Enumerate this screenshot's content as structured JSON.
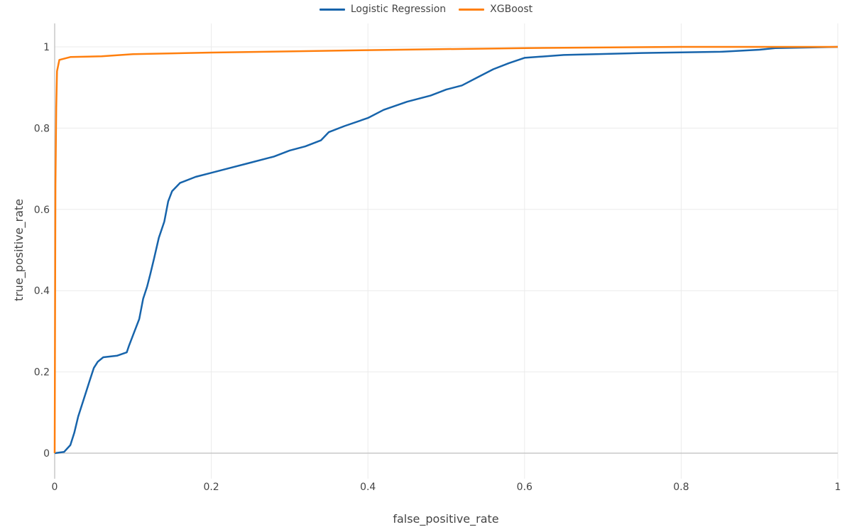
{
  "legend": {
    "items": [
      {
        "label": "Logistic Regression",
        "color": "#1764ab"
      },
      {
        "label": "XGBoost",
        "color": "#ff7f0e"
      }
    ]
  },
  "axes": {
    "xlabel": "false_positive_rate",
    "ylabel": "true_positive_rate",
    "xticks": [
      "0",
      "0.2",
      "0.4",
      "0.6",
      "0.8",
      "1"
    ],
    "yticks": [
      "0",
      "0.2",
      "0.4",
      "0.6",
      "0.8",
      "1"
    ]
  },
  "chart_data": {
    "type": "line",
    "title": "",
    "xlabel": "false_positive_rate",
    "ylabel": "true_positive_rate",
    "xlim": [
      0,
      1
    ],
    "ylim": [
      -0.06,
      1.06
    ],
    "grid": true,
    "legend_position": "top-center",
    "xticks": [
      0,
      0.2,
      0.4,
      0.6,
      0.8,
      1
    ],
    "yticks": [
      0,
      0.2,
      0.4,
      0.6,
      0.8,
      1
    ],
    "series": [
      {
        "name": "Logistic Regression",
        "color": "#1764ab",
        "x": [
          0,
          0.012,
          0.02,
          0.025,
          0.03,
          0.035,
          0.04,
          0.045,
          0.05,
          0.055,
          0.062,
          0.08,
          0.092,
          0.095,
          0.1,
          0.108,
          0.113,
          0.118,
          0.122,
          0.127,
          0.133,
          0.14,
          0.145,
          0.15,
          0.16,
          0.18,
          0.2,
          0.22,
          0.25,
          0.28,
          0.3,
          0.32,
          0.34,
          0.35,
          0.37,
          0.4,
          0.42,
          0.45,
          0.48,
          0.5,
          0.52,
          0.54,
          0.56,
          0.58,
          0.6,
          0.65,
          0.75,
          0.85,
          0.9,
          0.92,
          1
        ],
        "y": [
          0,
          0.003,
          0.02,
          0.05,
          0.09,
          0.12,
          0.15,
          0.18,
          0.21,
          0.225,
          0.236,
          0.24,
          0.248,
          0.265,
          0.29,
          0.33,
          0.38,
          0.41,
          0.44,
          0.48,
          0.53,
          0.57,
          0.62,
          0.645,
          0.665,
          0.68,
          0.69,
          0.7,
          0.715,
          0.73,
          0.745,
          0.755,
          0.77,
          0.79,
          0.805,
          0.825,
          0.845,
          0.865,
          0.88,
          0.895,
          0.905,
          0.925,
          0.945,
          0.96,
          0.973,
          0.98,
          0.985,
          0.988,
          0.993,
          0.997,
          1
        ]
      },
      {
        "name": "XGBoost",
        "color": "#ff7f0e",
        "x": [
          0,
          0.001,
          0.002,
          0.003,
          0.006,
          0.02,
          0.06,
          0.1,
          0.2,
          0.4,
          0.6,
          0.8,
          1
        ],
        "y": [
          0,
          0.66,
          0.85,
          0.94,
          0.968,
          0.975,
          0.977,
          0.982,
          0.986,
          0.992,
          0.997,
          1.0,
          1
        ]
      }
    ]
  }
}
